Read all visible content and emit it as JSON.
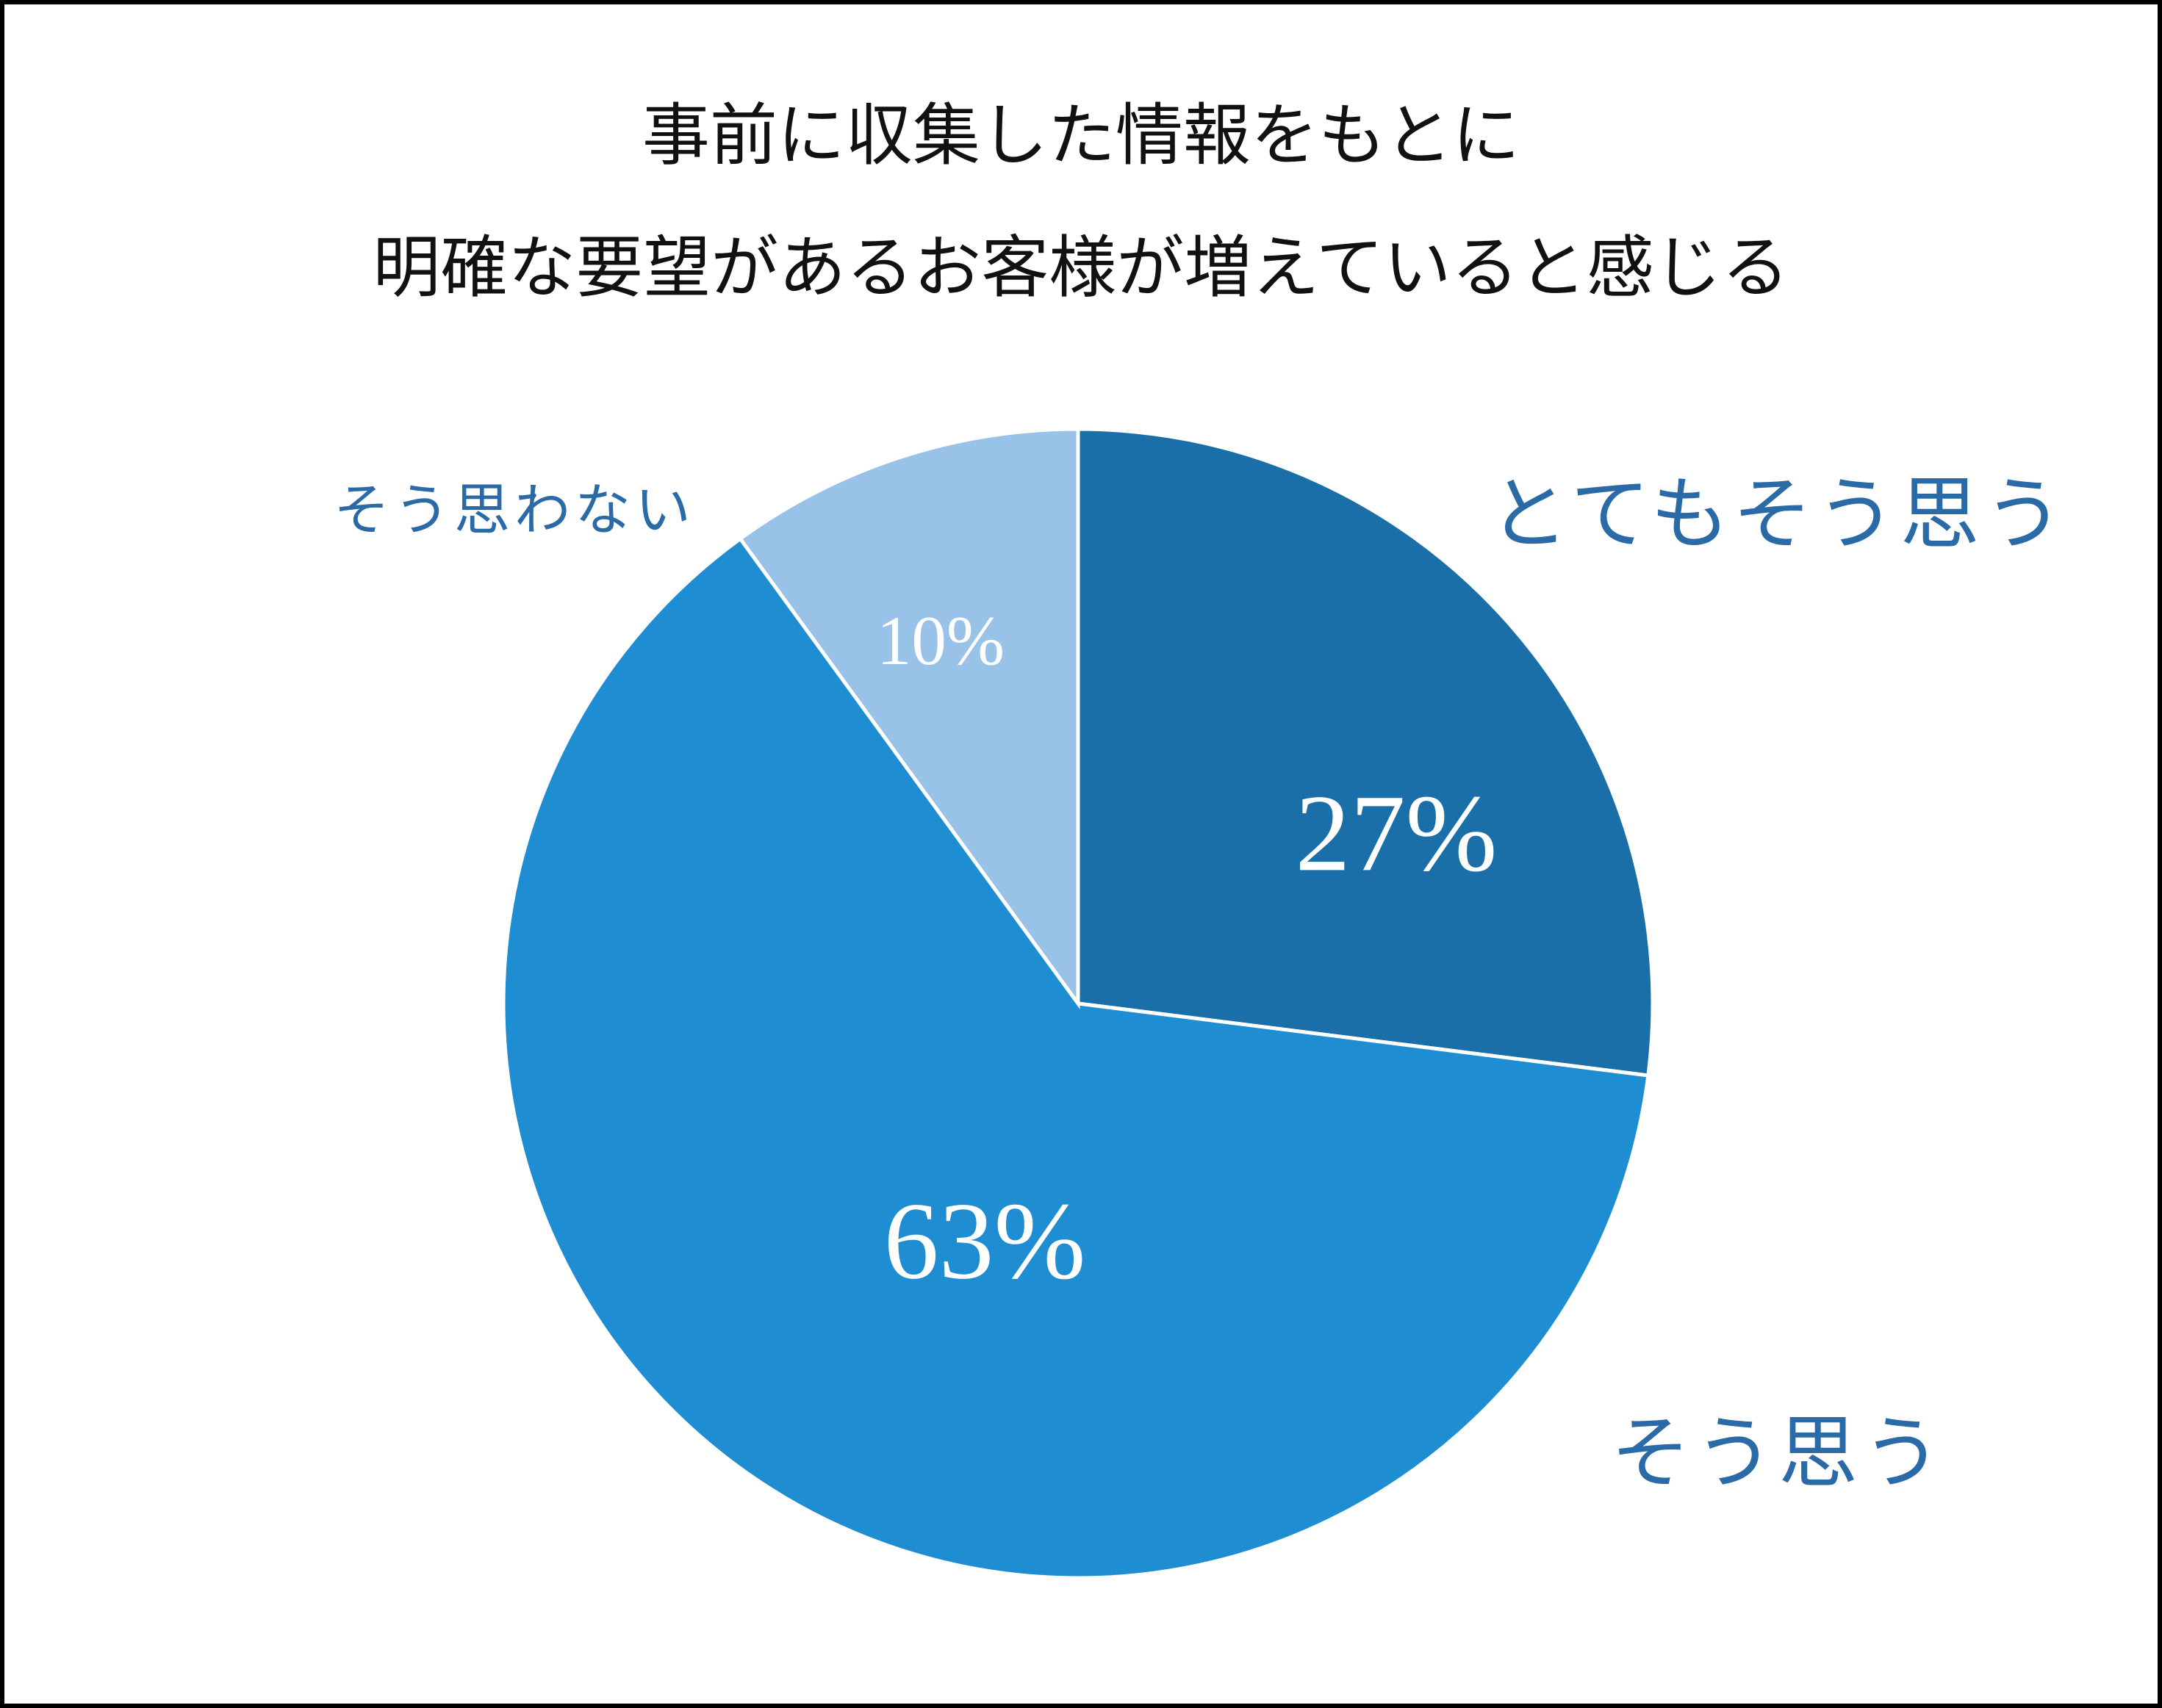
{
  "chart_data": {
    "type": "pie",
    "title": [
      "事前に収集した情報をもとに",
      "明確な要望があるお客様が増えていると感じる"
    ],
    "categories": [
      "とてもそう思う",
      "そう思う",
      "そう思わない"
    ],
    "values": [
      27,
      63,
      10
    ],
    "value_labels": [
      "27%",
      "63%",
      "10%"
    ],
    "colors": [
      "#1a6fa8",
      "#1f8dd2",
      "#99c2e8"
    ]
  }
}
